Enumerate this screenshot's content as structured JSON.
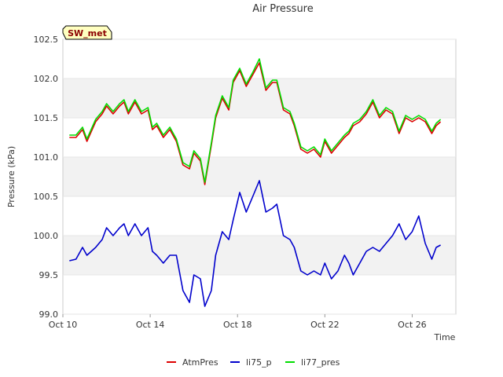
{
  "chart_data": {
    "type": "line",
    "title": "Air Pressure",
    "xlabel": "Time",
    "ylabel": "Pressure (kPa)",
    "site_badge": "SW_met",
    "xlim": [
      0,
      18
    ],
    "ylim": [
      99.0,
      102.5
    ],
    "xticks": [
      {
        "value": 0,
        "label": "Oct 10"
      },
      {
        "value": 4,
        "label": "Oct 14"
      },
      {
        "value": 8,
        "label": "Oct 18"
      },
      {
        "value": 12,
        "label": "Oct 22"
      },
      {
        "value": 16,
        "label": "Oct 26"
      }
    ],
    "yticks": [
      {
        "value": 99.0,
        "label": "99.0"
      },
      {
        "value": 99.5,
        "label": "99.5"
      },
      {
        "value": 100.0,
        "label": "100.0"
      },
      {
        "value": 100.5,
        "label": "100.5"
      },
      {
        "value": 101.0,
        "label": "101.0"
      },
      {
        "value": 101.5,
        "label": "101.5"
      },
      {
        "value": 102.0,
        "label": "102.0"
      },
      {
        "value": 102.5,
        "label": "102.5"
      }
    ],
    "bands": [
      [
        99.5,
        100.0
      ],
      [
        100.5,
        101.0
      ],
      [
        101.5,
        102.0
      ]
    ],
    "series": [
      {
        "name": "AtmPres",
        "color": "#dd0000",
        "x": [
          0.3,
          0.6,
          0.9,
          1.1,
          1.5,
          1.8,
          2.0,
          2.3,
          2.6,
          2.8,
          3.0,
          3.3,
          3.6,
          3.9,
          4.1,
          4.3,
          4.6,
          4.9,
          5.2,
          5.5,
          5.8,
          6.0,
          6.3,
          6.5,
          6.8,
          7.0,
          7.3,
          7.6,
          7.8,
          8.1,
          8.4,
          8.7,
          9.0,
          9.3,
          9.6,
          9.8,
          10.1,
          10.4,
          10.6,
          10.9,
          11.2,
          11.5,
          11.8,
          12.0,
          12.3,
          12.6,
          12.9,
          13.1,
          13.3,
          13.6,
          13.9,
          14.2,
          14.5,
          14.8,
          15.1,
          15.4,
          15.7,
          16.0,
          16.3,
          16.6,
          16.9,
          17.1,
          17.3
        ],
        "y": [
          101.25,
          101.25,
          101.35,
          101.2,
          101.45,
          101.55,
          101.65,
          101.55,
          101.65,
          101.7,
          101.55,
          101.7,
          101.55,
          101.6,
          101.35,
          101.4,
          101.25,
          101.35,
          101.2,
          100.9,
          100.85,
          101.05,
          100.95,
          100.65,
          101.15,
          101.5,
          101.75,
          101.6,
          101.95,
          102.1,
          101.9,
          102.05,
          102.2,
          101.85,
          101.95,
          101.95,
          101.6,
          101.55,
          101.4,
          101.1,
          101.05,
          101.1,
          101.0,
          101.2,
          101.05,
          101.15,
          101.25,
          101.3,
          101.4,
          101.45,
          101.55,
          101.7,
          101.5,
          101.6,
          101.55,
          101.3,
          101.5,
          101.45,
          101.5,
          101.45,
          101.3,
          101.4,
          101.45
        ]
      },
      {
        "name": "li75_p",
        "color": "#0000cc",
        "x": [
          0.3,
          0.6,
          0.9,
          1.1,
          1.5,
          1.8,
          2.0,
          2.3,
          2.6,
          2.8,
          3.0,
          3.3,
          3.6,
          3.9,
          4.1,
          4.3,
          4.6,
          4.9,
          5.2,
          5.5,
          5.8,
          6.0,
          6.3,
          6.5,
          6.8,
          7.0,
          7.3,
          7.6,
          7.8,
          8.1,
          8.4,
          8.7,
          9.0,
          9.3,
          9.6,
          9.8,
          10.1,
          10.4,
          10.6,
          10.9,
          11.2,
          11.5,
          11.8,
          12.0,
          12.3,
          12.6,
          12.9,
          13.1,
          13.3,
          13.6,
          13.9,
          14.2,
          14.5,
          14.8,
          15.1,
          15.4,
          15.7,
          16.0,
          16.3,
          16.6,
          16.9,
          17.1,
          17.3
        ],
        "y": [
          99.68,
          99.7,
          99.85,
          99.75,
          99.85,
          99.95,
          100.1,
          100.0,
          100.1,
          100.15,
          100.0,
          100.15,
          100.0,
          100.1,
          99.8,
          99.75,
          99.65,
          99.75,
          99.75,
          99.3,
          99.15,
          99.5,
          99.45,
          99.1,
          99.3,
          99.75,
          100.05,
          99.95,
          100.2,
          100.55,
          100.3,
          100.5,
          100.7,
          100.3,
          100.35,
          100.4,
          100.0,
          99.95,
          99.85,
          99.55,
          99.5,
          99.55,
          99.5,
          99.65,
          99.45,
          99.55,
          99.75,
          99.65,
          99.5,
          99.65,
          99.8,
          99.85,
          99.8,
          99.9,
          100.0,
          100.15,
          99.95,
          100.05,
          100.25,
          99.9,
          99.7,
          99.85,
          99.88
        ]
      },
      {
        "name": "li77_pres",
        "color": "#00dd00",
        "x": [
          0.3,
          0.6,
          0.9,
          1.1,
          1.5,
          1.8,
          2.0,
          2.3,
          2.6,
          2.8,
          3.0,
          3.3,
          3.6,
          3.9,
          4.1,
          4.3,
          4.6,
          4.9,
          5.2,
          5.5,
          5.8,
          6.0,
          6.3,
          6.5,
          6.8,
          7.0,
          7.3,
          7.6,
          7.8,
          8.1,
          8.4,
          8.7,
          9.0,
          9.3,
          9.6,
          9.8,
          10.1,
          10.4,
          10.6,
          10.9,
          11.2,
          11.5,
          11.8,
          12.0,
          12.3,
          12.6,
          12.9,
          13.1,
          13.3,
          13.6,
          13.9,
          14.2,
          14.5,
          14.8,
          15.1,
          15.4,
          15.7,
          16.0,
          16.3,
          16.6,
          16.9,
          17.1,
          17.3
        ],
        "y": [
          101.28,
          101.28,
          101.38,
          101.23,
          101.48,
          101.58,
          101.68,
          101.58,
          101.68,
          101.73,
          101.58,
          101.73,
          101.58,
          101.63,
          101.38,
          101.43,
          101.28,
          101.38,
          101.23,
          100.93,
          100.88,
          101.08,
          100.98,
          100.68,
          101.18,
          101.53,
          101.78,
          101.63,
          101.98,
          102.13,
          101.93,
          102.08,
          102.25,
          101.88,
          101.98,
          101.98,
          101.63,
          101.58,
          101.43,
          101.13,
          101.08,
          101.13,
          101.03,
          101.23,
          101.08,
          101.18,
          101.28,
          101.33,
          101.43,
          101.48,
          101.58,
          101.73,
          101.53,
          101.63,
          101.58,
          101.33,
          101.53,
          101.48,
          101.53,
          101.48,
          101.33,
          101.43,
          101.48
        ]
      }
    ]
  }
}
